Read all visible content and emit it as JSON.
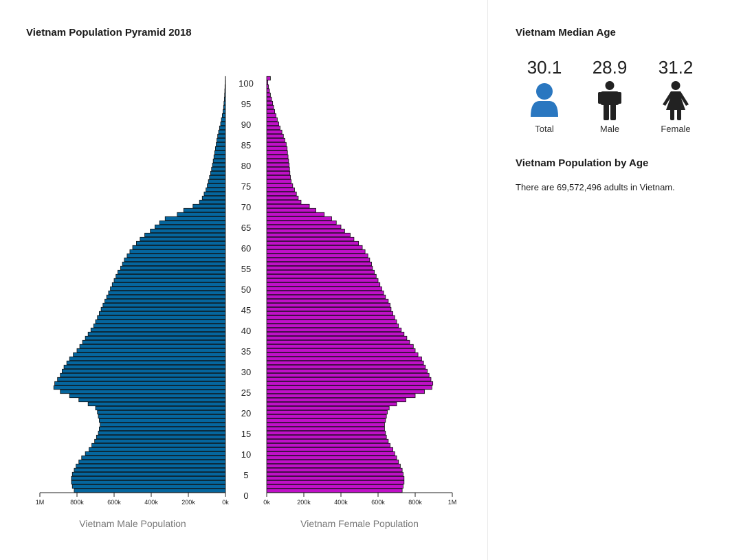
{
  "median": {
    "title": "Vietnam Median Age",
    "items": [
      {
        "key": "total",
        "value": "30.1",
        "label": "Total",
        "icon": "person-icon",
        "color": "#2a77c0"
      },
      {
        "key": "male",
        "value": "28.9",
        "label": "Male",
        "icon": "male-icon",
        "color": "#222222"
      },
      {
        "key": "female",
        "value": "31.2",
        "label": "Female",
        "icon": "female-icon",
        "color": "#222222"
      }
    ]
  },
  "population_by_age": {
    "title": "Vietnam Population by Age",
    "text": "There are 69,572,496 adults in Vietnam."
  },
  "chart_data": {
    "type": "bar",
    "orientation": "horizontal-pyramid",
    "title": "Vietnam Population Pyramid 2018",
    "ages": [
      0,
      1,
      2,
      3,
      4,
      5,
      6,
      7,
      8,
      9,
      10,
      11,
      12,
      13,
      14,
      15,
      16,
      17,
      18,
      19,
      20,
      21,
      22,
      23,
      24,
      25,
      26,
      27,
      28,
      29,
      30,
      31,
      32,
      33,
      34,
      35,
      36,
      37,
      38,
      39,
      40,
      41,
      42,
      43,
      44,
      45,
      46,
      47,
      48,
      49,
      50,
      51,
      52,
      53,
      54,
      55,
      56,
      57,
      58,
      59,
      60,
      61,
      62,
      63,
      64,
      65,
      66,
      67,
      68,
      69,
      70,
      71,
      72,
      73,
      74,
      75,
      76,
      77,
      78,
      79,
      80,
      81,
      82,
      83,
      84,
      85,
      86,
      87,
      88,
      89,
      90,
      91,
      92,
      93,
      94,
      95,
      96,
      97,
      98,
      99,
      100
    ],
    "age_ticks": [
      0,
      5,
      10,
      15,
      20,
      25,
      30,
      35,
      40,
      45,
      50,
      55,
      60,
      65,
      70,
      75,
      80,
      85,
      90,
      95,
      100
    ],
    "series": [
      {
        "name": "Vietnam Male Population",
        "color": "#05669e",
        "values": [
          815000,
          825000,
          830000,
          830000,
          825000,
          815000,
          805000,
          790000,
          775000,
          755000,
          735000,
          720000,
          705000,
          695000,
          685000,
          680000,
          675000,
          680000,
          685000,
          690000,
          700000,
          740000,
          790000,
          840000,
          890000,
          925000,
          920000,
          905000,
          890000,
          880000,
          870000,
          855000,
          840000,
          820000,
          800000,
          785000,
          770000,
          755000,
          740000,
          725000,
          710000,
          700000,
          690000,
          680000,
          670000,
          660000,
          650000,
          640000,
          630000,
          620000,
          610000,
          600000,
          590000,
          580000,
          565000,
          555000,
          545000,
          530000,
          515000,
          500000,
          480000,
          460000,
          435000,
          405000,
          380000,
          355000,
          325000,
          260000,
          225000,
          175000,
          140000,
          125000,
          115000,
          105000,
          98000,
          92000,
          86000,
          80000,
          75000,
          70000,
          66000,
          62000,
          58000,
          54000,
          50000,
          46000,
          42000,
          37000,
          32000,
          26000,
          22000,
          17000,
          13000,
          10000,
          8000,
          6000,
          4500,
          3500,
          2500,
          1500,
          1000
        ]
      },
      {
        "name": "Vietnam Female Population",
        "color": "#c010c8",
        "values": [
          730000,
          735000,
          740000,
          740000,
          735000,
          730000,
          720000,
          710000,
          700000,
          690000,
          680000,
          665000,
          655000,
          645000,
          640000,
          635000,
          635000,
          640000,
          645000,
          650000,
          660000,
          700000,
          750000,
          800000,
          850000,
          890000,
          895000,
          885000,
          875000,
          865000,
          855000,
          845000,
          835000,
          815000,
          800000,
          790000,
          770000,
          755000,
          740000,
          725000,
          710000,
          700000,
          690000,
          680000,
          670000,
          665000,
          655000,
          640000,
          630000,
          620000,
          610000,
          600000,
          590000,
          580000,
          570000,
          565000,
          555000,
          545000,
          530000,
          515000,
          495000,
          470000,
          450000,
          420000,
          400000,
          375000,
          350000,
          310000,
          265000,
          230000,
          185000,
          170000,
          160000,
          150000,
          140000,
          132000,
          128000,
          125000,
          123000,
          121000,
          118000,
          115000,
          112000,
          110000,
          105000,
          98000,
          90000,
          82000,
          72000,
          65000,
          57000,
          50000,
          43000,
          37000,
          32000,
          26000,
          20000,
          15000,
          10000,
          6000,
          20000
        ]
      }
    ],
    "male_axis_label": "Vietnam Male Population",
    "female_axis_label": "Vietnam Female Population",
    "value_ticks": [
      0,
      200000,
      400000,
      600000,
      800000,
      1000000
    ],
    "male_tick_labels": [
      "0k",
      "200k",
      "400k",
      "600k",
      "800k",
      "1M"
    ],
    "female_tick_labels": [
      "0k",
      "200k",
      "400k",
      "600k",
      "800k",
      "1M"
    ],
    "xlim": [
      0,
      1000000
    ],
    "ylim": [
      0,
      100
    ]
  }
}
